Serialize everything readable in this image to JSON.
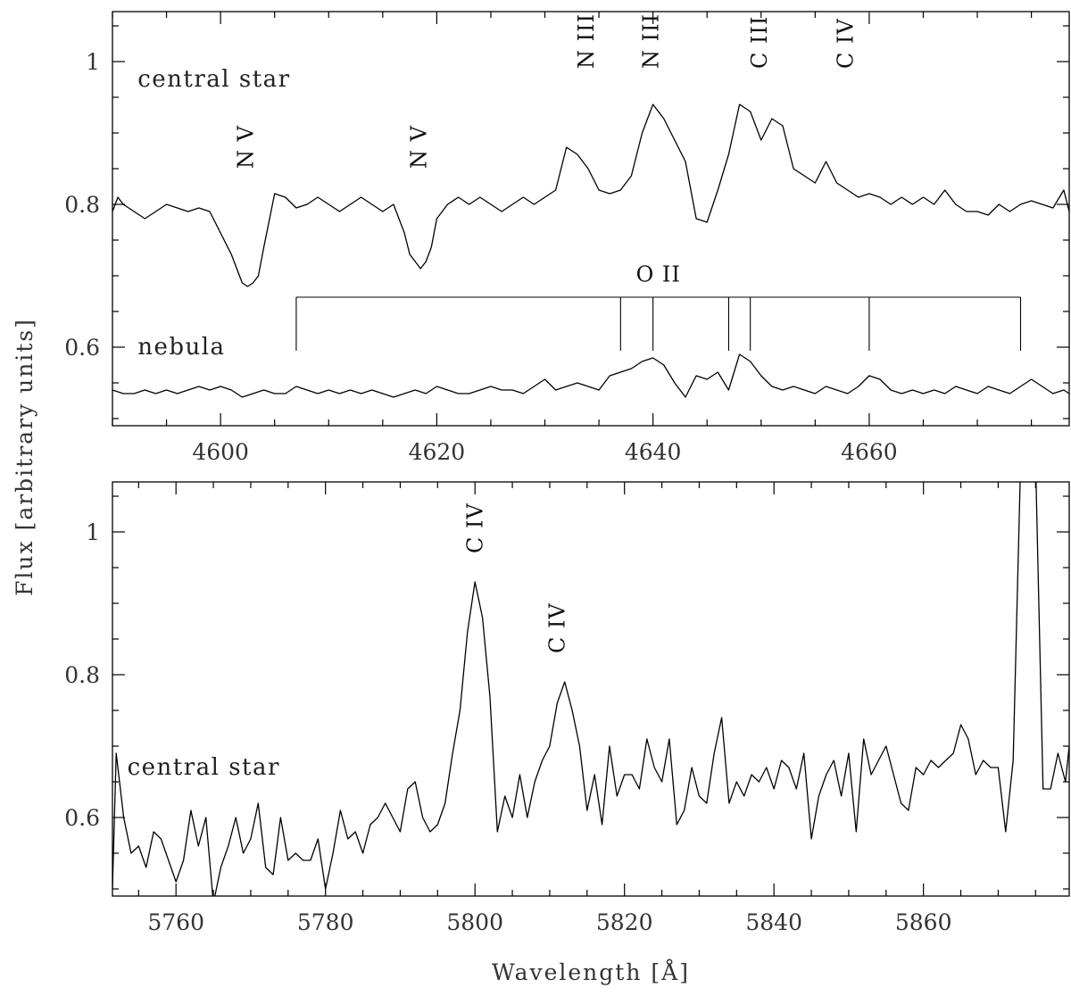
{
  "chart_data": [
    {
      "type": "line",
      "xlabel": "",
      "ylabel": "Flux [arbitrary units]",
      "xlim": [
        4590,
        4678.5
      ],
      "ylim": [
        0.49,
        1.07
      ],
      "xticks": [
        4600,
        4620,
        4640,
        4660
      ],
      "yticks": [
        0.6,
        0.8,
        1
      ],
      "ytick_labels": [
        "0.6",
        "0.8",
        "1"
      ],
      "series": [
        {
          "name": "central star",
          "x": [
            4590,
            4590.5,
            4591,
            4591.5,
            4592,
            4592.5,
            4593,
            4593.5,
            4594,
            4595,
            4596,
            4597,
            4598,
            4599,
            4600,
            4601,
            4601.5,
            4602,
            4602.5,
            4603,
            4603.5,
            4604,
            4605,
            4606,
            4607,
            4608,
            4609,
            4610,
            4611,
            4612,
            4613,
            4614,
            4615,
            4616,
            4617,
            4617.5,
            4618,
            4618.5,
            4619,
            4619.5,
            4620,
            4621,
            4622,
            4623,
            4624,
            4625,
            4626,
            4627,
            4628,
            4629,
            4630,
            4631,
            4632,
            4633,
            4634,
            4635,
            4636,
            4637,
            4638,
            4639,
            4640,
            4641,
            4642,
            4643,
            4644,
            4645,
            4646,
            4647,
            4648,
            4649,
            4650,
            4651,
            4652,
            4653,
            4654,
            4655,
            4656,
            4657,
            4658,
            4659,
            4660,
            4661,
            4662,
            4663,
            4664,
            4665,
            4666,
            4667,
            4668,
            4669,
            4670,
            4671,
            4672,
            4673,
            4674,
            4675,
            4676,
            4677,
            4678,
            4678.5
          ],
          "values": [
            0.79,
            0.81,
            0.8,
            0.795,
            0.79,
            0.785,
            0.78,
            0.785,
            0.79,
            0.8,
            0.795,
            0.79,
            0.795,
            0.79,
            0.76,
            0.73,
            0.71,
            0.69,
            0.685,
            0.69,
            0.7,
            0.74,
            0.815,
            0.81,
            0.795,
            0.8,
            0.81,
            0.8,
            0.79,
            0.8,
            0.81,
            0.8,
            0.79,
            0.8,
            0.76,
            0.73,
            0.72,
            0.71,
            0.72,
            0.74,
            0.78,
            0.8,
            0.81,
            0.8,
            0.81,
            0.8,
            0.79,
            0.8,
            0.81,
            0.8,
            0.81,
            0.82,
            0.88,
            0.87,
            0.85,
            0.82,
            0.815,
            0.82,
            0.84,
            0.9,
            0.94,
            0.92,
            0.89,
            0.86,
            0.78,
            0.775,
            0.82,
            0.87,
            0.94,
            0.93,
            0.89,
            0.92,
            0.91,
            0.85,
            0.84,
            0.83,
            0.86,
            0.83,
            0.82,
            0.81,
            0.815,
            0.81,
            0.8,
            0.81,
            0.8,
            0.81,
            0.8,
            0.82,
            0.8,
            0.79,
            0.79,
            0.785,
            0.8,
            0.79,
            0.8,
            0.805,
            0.8,
            0.795,
            0.82,
            0.79
          ]
        },
        {
          "name": "nebula",
          "x": [
            4590,
            4591,
            4592,
            4593,
            4594,
            4595,
            4596,
            4597,
            4598,
            4599,
            4600,
            4601,
            4602,
            4603,
            4604,
            4605,
            4606,
            4607,
            4608,
            4609,
            4610,
            4611,
            4612,
            4613,
            4614,
            4615,
            4616,
            4617,
            4618,
            4619,
            4620,
            4621,
            4622,
            4623,
            4624,
            4625,
            4626,
            4627,
            4628,
            4629,
            4630,
            4631,
            4632,
            4633,
            4634,
            4635,
            4636,
            4637,
            4638,
            4639,
            4640,
            4641,
            4642,
            4643,
            4644,
            4645,
            4646,
            4647,
            4648,
            4649,
            4650,
            4651,
            4652,
            4653,
            4654,
            4655,
            4656,
            4657,
            4658,
            4659,
            4660,
            4661,
            4662,
            4663,
            4664,
            4665,
            4666,
            4667,
            4668,
            4669,
            4670,
            4671,
            4672,
            4673,
            4674,
            4675,
            4676,
            4677,
            4678,
            4678.5
          ],
          "values": [
            0.54,
            0.535,
            0.535,
            0.54,
            0.535,
            0.54,
            0.535,
            0.54,
            0.545,
            0.54,
            0.545,
            0.54,
            0.53,
            0.535,
            0.54,
            0.535,
            0.535,
            0.545,
            0.54,
            0.535,
            0.54,
            0.535,
            0.54,
            0.535,
            0.54,
            0.535,
            0.53,
            0.535,
            0.54,
            0.535,
            0.545,
            0.54,
            0.535,
            0.535,
            0.54,
            0.545,
            0.54,
            0.54,
            0.535,
            0.545,
            0.555,
            0.54,
            0.545,
            0.55,
            0.545,
            0.54,
            0.56,
            0.565,
            0.57,
            0.58,
            0.585,
            0.575,
            0.55,
            0.53,
            0.56,
            0.555,
            0.565,
            0.54,
            0.59,
            0.58,
            0.56,
            0.545,
            0.54,
            0.545,
            0.54,
            0.535,
            0.545,
            0.54,
            0.535,
            0.545,
            0.56,
            0.555,
            0.54,
            0.535,
            0.54,
            0.535,
            0.54,
            0.535,
            0.545,
            0.54,
            0.535,
            0.545,
            0.54,
            0.535,
            0.545,
            0.555,
            0.545,
            0.535,
            0.54,
            0.535
          ]
        }
      ],
      "annotations": [
        {
          "text": "central star",
          "x": 4592,
          "y": 0.965
        },
        {
          "text": "nebula",
          "x": 4592,
          "y": 0.59
        }
      ],
      "line_ids": [
        {
          "text": "N V",
          "x": 4603,
          "y": 0.85
        },
        {
          "text": "N V",
          "x": 4619,
          "y": 0.85
        },
        {
          "text": "N III",
          "x": 4634.5,
          "y": 0.99
        },
        {
          "text": "N III",
          "x": 4640.5,
          "y": 0.99
        },
        {
          "text": "C III",
          "x": 4650.5,
          "y": 0.99
        },
        {
          "text": "C IV",
          "x": 4658.5,
          "y": 0.99
        }
      ],
      "oii_marker": {
        "label": "O II",
        "bar_y": 0.67,
        "label_y": 0.692,
        "label_x": 4640.5,
        "positions": [
          4607,
          4637,
          4640,
          4647,
          4649,
          4660,
          4674
        ],
        "bottoms": [
          0.595,
          0.595,
          0.595,
          0.595,
          0.595,
          0.595,
          0.595
        ]
      }
    },
    {
      "type": "line",
      "xlabel": "Wavelength [Å]",
      "ylabel": "Flux [arbitrary units]",
      "xlim": [
        5751.5,
        5879.5
      ],
      "ylim": [
        0.49,
        1.07
      ],
      "xticks": [
        5760,
        5780,
        5800,
        5820,
        5840,
        5860
      ],
      "yticks": [
        0.6,
        0.8,
        1
      ],
      "ytick_labels": [
        "0.6",
        "0.8",
        "1"
      ],
      "series": [
        {
          "name": "central star",
          "x": [
            5751.5,
            5752,
            5753,
            5754,
            5755,
            5756,
            5757,
            5758,
            5759,
            5760,
            5761,
            5762,
            5763,
            5764,
            5765,
            5766,
            5767,
            5768,
            5769,
            5770,
            5771,
            5772,
            5773,
            5774,
            5775,
            5776,
            5777,
            5778,
            5779,
            5780,
            5781,
            5782,
            5783,
            5784,
            5785,
            5786,
            5787,
            5788,
            5789,
            5790,
            5791,
            5792,
            5793,
            5794,
            5795,
            5796,
            5797,
            5798,
            5799,
            5800,
            5801,
            5802,
            5803,
            5804,
            5805,
            5806,
            5807,
            5808,
            5809,
            5810,
            5811,
            5812,
            5813,
            5814,
            5815,
            5816,
            5817,
            5818,
            5819,
            5820,
            5821,
            5822,
            5823,
            5824,
            5825,
            5826,
            5827,
            5828,
            5829,
            5830,
            5831,
            5832,
            5833,
            5834,
            5835,
            5836,
            5837,
            5838,
            5839,
            5840,
            5841,
            5842,
            5843,
            5844,
            5845,
            5846,
            5847,
            5848,
            5849,
            5850,
            5851,
            5852,
            5853,
            5854,
            5855,
            5856,
            5857,
            5858,
            5859,
            5860,
            5861,
            5862,
            5863,
            5864,
            5865,
            5866,
            5867,
            5868,
            5869,
            5870,
            5871,
            5872,
            5873,
            5874,
            5875,
            5876,
            5877,
            5878,
            5879,
            5879.5
          ],
          "values": [
            0.5,
            0.69,
            0.6,
            0.55,
            0.56,
            0.53,
            0.58,
            0.57,
            0.54,
            0.51,
            0.54,
            0.61,
            0.56,
            0.6,
            0.48,
            0.53,
            0.56,
            0.6,
            0.55,
            0.57,
            0.62,
            0.53,
            0.52,
            0.6,
            0.54,
            0.55,
            0.54,
            0.54,
            0.57,
            0.5,
            0.55,
            0.61,
            0.57,
            0.58,
            0.55,
            0.59,
            0.6,
            0.62,
            0.6,
            0.58,
            0.64,
            0.65,
            0.6,
            0.58,
            0.59,
            0.62,
            0.69,
            0.75,
            0.86,
            0.93,
            0.88,
            0.77,
            0.58,
            0.63,
            0.6,
            0.66,
            0.6,
            0.65,
            0.68,
            0.7,
            0.76,
            0.79,
            0.75,
            0.7,
            0.61,
            0.66,
            0.59,
            0.7,
            0.63,
            0.66,
            0.66,
            0.64,
            0.71,
            0.67,
            0.65,
            0.71,
            0.59,
            0.61,
            0.67,
            0.63,
            0.62,
            0.69,
            0.74,
            0.62,
            0.65,
            0.63,
            0.66,
            0.65,
            0.67,
            0.64,
            0.68,
            0.67,
            0.64,
            0.69,
            0.57,
            0.63,
            0.66,
            0.68,
            0.63,
            0.69,
            0.58,
            0.71,
            0.66,
            0.68,
            0.7,
            0.66,
            0.62,
            0.61,
            0.67,
            0.66,
            0.68,
            0.67,
            0.68,
            0.69,
            0.73,
            0.71,
            0.66,
            0.68,
            0.67,
            0.67,
            0.58,
            0.68,
            1.1,
            1.1,
            1.1,
            0.64,
            0.64,
            0.69,
            0.65,
            0.7
          ]
        }
      ],
      "annotations": [
        {
          "text": "central star",
          "x": 5753,
          "y": 0.66
        }
      ],
      "line_ids": [
        {
          "text": "C IV",
          "x": 5801,
          "y": 0.97
        },
        {
          "text": "C IV",
          "x": 5812,
          "y": 0.83
        }
      ]
    }
  ]
}
